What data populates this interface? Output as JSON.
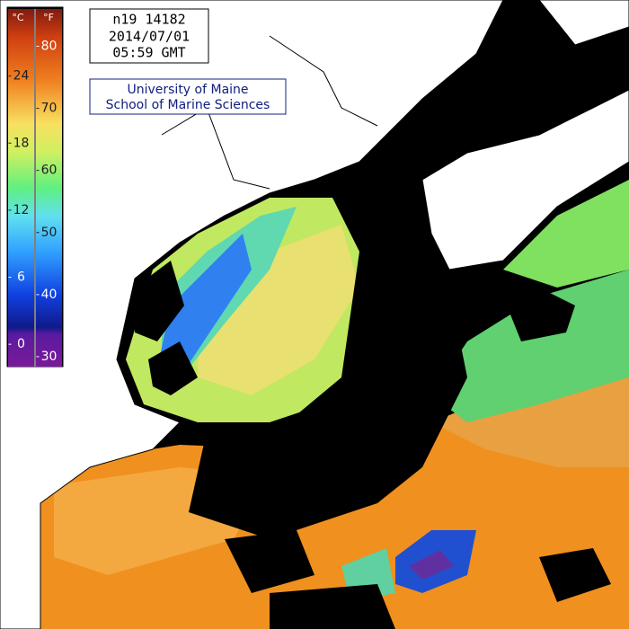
{
  "header": {
    "lines": [
      "n19 14182",
      "2014/07/01",
      "05:59 GMT"
    ]
  },
  "credit": {
    "lines": [
      "University of Maine",
      "School of Marine Sciences"
    ]
  },
  "colorbar": {
    "celsius": {
      "unit": "°C",
      "lim": [
        -2,
        30
      ],
      "ticks": [
        0,
        6,
        12,
        18,
        24
      ]
    },
    "fahrenheit": {
      "unit": "°F",
      "lim": [
        28.4,
        86
      ],
      "ticks": [
        30,
        40,
        50,
        60,
        70,
        80
      ]
    }
  }
}
